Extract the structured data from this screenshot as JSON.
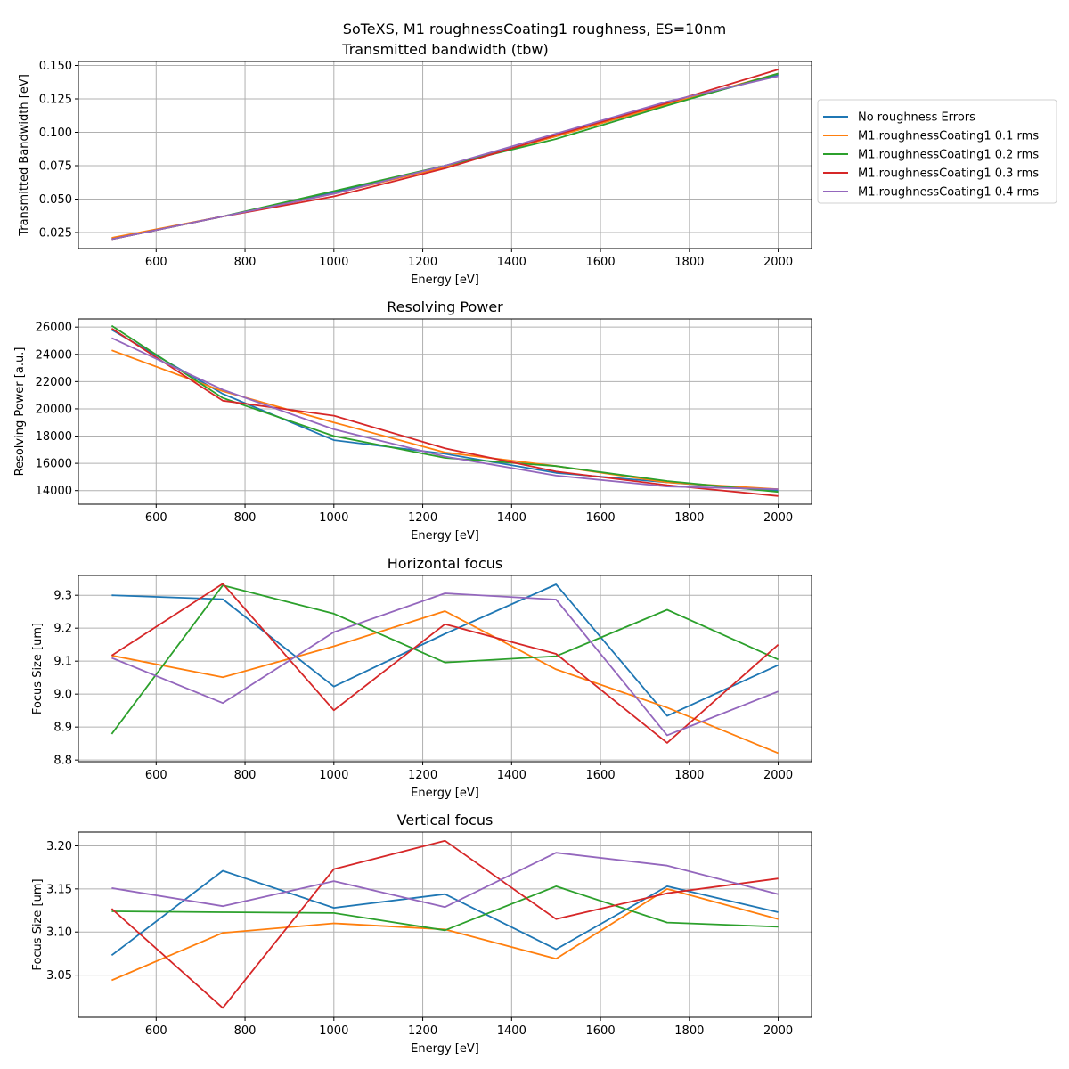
{
  "figure": {
    "suptitle": "SoTeXS, M1 roughnessCoating1 roughness, ES=10nm"
  },
  "legend": {
    "placement": "right of first subplot"
  },
  "colors": {
    "series": [
      "#1f77b4",
      "#ff7f0e",
      "#2ca02c",
      "#d62728",
      "#9467bd"
    ],
    "grid": "#b0b0b0"
  },
  "chart_data": [
    {
      "type": "line",
      "title": "Transmitted bandwidth (tbw)",
      "xlabel": "Energy [eV]",
      "ylabel": "Transmitted Bandwidth [eV]",
      "x": [
        500,
        750,
        1000,
        1250,
        1500,
        1750,
        2000
      ],
      "xlim": [
        425,
        2075
      ],
      "ylim": [
        0.013,
        0.153
      ],
      "xticks": [
        "600",
        "800",
        "1000",
        "1200",
        "1400",
        "1600",
        "1800",
        "2000"
      ],
      "yticks": [
        "0.025",
        "0.050",
        "0.075",
        "0.100",
        "0.125",
        "0.150"
      ],
      "xtick_values": [
        600,
        800,
        1000,
        1200,
        1400,
        1600,
        1800,
        2000
      ],
      "ytick_values": [
        0.025,
        0.05,
        0.075,
        0.1,
        0.125,
        0.15
      ],
      "grid": true,
      "series": [
        {
          "name": "No roughness Errors",
          "values": [
            0.02,
            0.037,
            0.055,
            0.075,
            0.097,
            0.121,
            0.143
          ]
        },
        {
          "name": "M1.roughnessCoating1 0.1 rms",
          "values": [
            0.021,
            0.037,
            0.054,
            0.074,
            0.097,
            0.121,
            0.144
          ]
        },
        {
          "name": "M1.roughnessCoating1 0.2 rms",
          "values": [
            0.02,
            0.037,
            0.056,
            0.075,
            0.095,
            0.12,
            0.144
          ]
        },
        {
          "name": "M1.roughnessCoating1 0.3 rms",
          "values": [
            0.02,
            0.037,
            0.052,
            0.073,
            0.098,
            0.122,
            0.147
          ]
        },
        {
          "name": "M1.roughnessCoating1 0.4 rms",
          "values": [
            0.02,
            0.037,
            0.054,
            0.075,
            0.099,
            0.123,
            0.142
          ]
        }
      ]
    },
    {
      "type": "line",
      "title": "Resolving Power",
      "xlabel": "Energy [eV]",
      "ylabel": "Resolving Power [a.u.]",
      "x": [
        500,
        750,
        1000,
        1250,
        1500,
        1750,
        2000
      ],
      "xlim": [
        425,
        2075
      ],
      "ylim": [
        13000,
        26600
      ],
      "xticks": [
        "600",
        "800",
        "1000",
        "1200",
        "1400",
        "1600",
        "1800",
        "2000"
      ],
      "yticks": [
        "14000",
        "16000",
        "18000",
        "20000",
        "22000",
        "24000",
        "26000"
      ],
      "xtick_values": [
        600,
        800,
        1000,
        1200,
        1400,
        1600,
        1800,
        2000
      ],
      "ytick_values": [
        14000,
        16000,
        18000,
        20000,
        22000,
        24000,
        26000
      ],
      "grid": true,
      "series": [
        {
          "name": "No roughness Errors",
          "values": [
            25800,
            21100,
            17700,
            16700,
            15300,
            14600,
            14000
          ]
        },
        {
          "name": "M1.roughnessCoating1 0.1 rms",
          "values": [
            24300,
            21300,
            19000,
            16800,
            15800,
            14600,
            14100
          ]
        },
        {
          "name": "M1.roughnessCoating1 0.2 rms",
          "values": [
            26100,
            20800,
            18000,
            16400,
            15800,
            14700,
            13900
          ]
        },
        {
          "name": "M1.roughnessCoating1 0.3 rms",
          "values": [
            25900,
            20600,
            19500,
            17100,
            15400,
            14400,
            13600
          ]
        },
        {
          "name": "M1.roughnessCoating1 0.4 rms",
          "values": [
            25200,
            21400,
            18500,
            16500,
            15100,
            14300,
            14100
          ]
        }
      ]
    },
    {
      "type": "line",
      "title": "Horizontal focus",
      "xlabel": "Energy [eV]",
      "ylabel": "Focus Size [um]",
      "x": [
        500,
        750,
        1000,
        1250,
        1500,
        1750,
        2000
      ],
      "xlim": [
        425,
        2075
      ],
      "ylim": [
        8.795,
        9.36
      ],
      "xticks": [
        "600",
        "800",
        "1000",
        "1200",
        "1400",
        "1600",
        "1800",
        "2000"
      ],
      "yticks": [
        "8.8",
        "8.9",
        "9.0",
        "9.1",
        "9.2",
        "9.3"
      ],
      "xtick_values": [
        600,
        800,
        1000,
        1200,
        1400,
        1600,
        1800,
        2000
      ],
      "ytick_values": [
        8.8,
        8.9,
        9.0,
        9.1,
        9.2,
        9.3
      ],
      "grid": true,
      "series": [
        {
          "name": "No roughness Errors",
          "values": [
            9.3,
            9.288,
            9.023,
            9.183,
            9.333,
            8.934,
            9.088
          ]
        },
        {
          "name": "M1.roughnessCoating1 0.1 rms",
          "values": [
            9.117,
            9.051,
            9.145,
            9.252,
            9.075,
            8.959,
            8.821
          ]
        },
        {
          "name": "M1.roughnessCoating1 0.2 rms",
          "values": [
            8.879,
            9.33,
            9.244,
            9.096,
            9.115,
            9.256,
            9.105
          ]
        },
        {
          "name": "M1.roughnessCoating1 0.3 rms",
          "values": [
            9.117,
            9.335,
            8.951,
            9.212,
            9.122,
            8.852,
            9.15
          ]
        },
        {
          "name": "M1.roughnessCoating1 0.4 rms",
          "values": [
            9.11,
            8.973,
            9.188,
            9.306,
            9.287,
            8.875,
            9.008
          ]
        }
      ]
    },
    {
      "type": "line",
      "title": "Vertical focus",
      "xlabel": "Energy [eV]",
      "ylabel": "Focus Size [um]",
      "x": [
        500,
        750,
        1000,
        1250,
        1500,
        1750,
        2000
      ],
      "xlim": [
        425,
        2075
      ],
      "ylim": [
        3.001,
        3.216
      ],
      "xticks": [
        "600",
        "800",
        "1000",
        "1200",
        "1400",
        "1600",
        "1800",
        "2000"
      ],
      "yticks": [
        "3.05",
        "3.10",
        "3.15",
        "3.20"
      ],
      "xtick_values": [
        600,
        800,
        1000,
        1200,
        1400,
        1600,
        1800,
        2000
      ],
      "ytick_values": [
        3.05,
        3.1,
        3.15,
        3.2
      ],
      "grid": true,
      "series": [
        {
          "name": "No roughness Errors",
          "values": [
            3.073,
            3.171,
            3.128,
            3.144,
            3.08,
            3.153,
            3.123
          ]
        },
        {
          "name": "M1.roughnessCoating1 0.1 rms",
          "values": [
            3.044,
            3.099,
            3.11,
            3.103,
            3.069,
            3.15,
            3.115
          ]
        },
        {
          "name": "M1.roughnessCoating1 0.2 rms",
          "values": [
            3.124,
            3.123,
            3.122,
            3.102,
            3.153,
            3.111,
            3.106
          ]
        },
        {
          "name": "M1.roughnessCoating1 0.3 rms",
          "values": [
            3.127,
            3.012,
            3.173,
            3.206,
            3.115,
            3.145,
            3.162
          ]
        },
        {
          "name": "M1.roughnessCoating1 0.4 rms",
          "values": [
            3.151,
            3.13,
            3.159,
            3.129,
            3.192,
            3.177,
            3.144
          ]
        }
      ]
    }
  ]
}
